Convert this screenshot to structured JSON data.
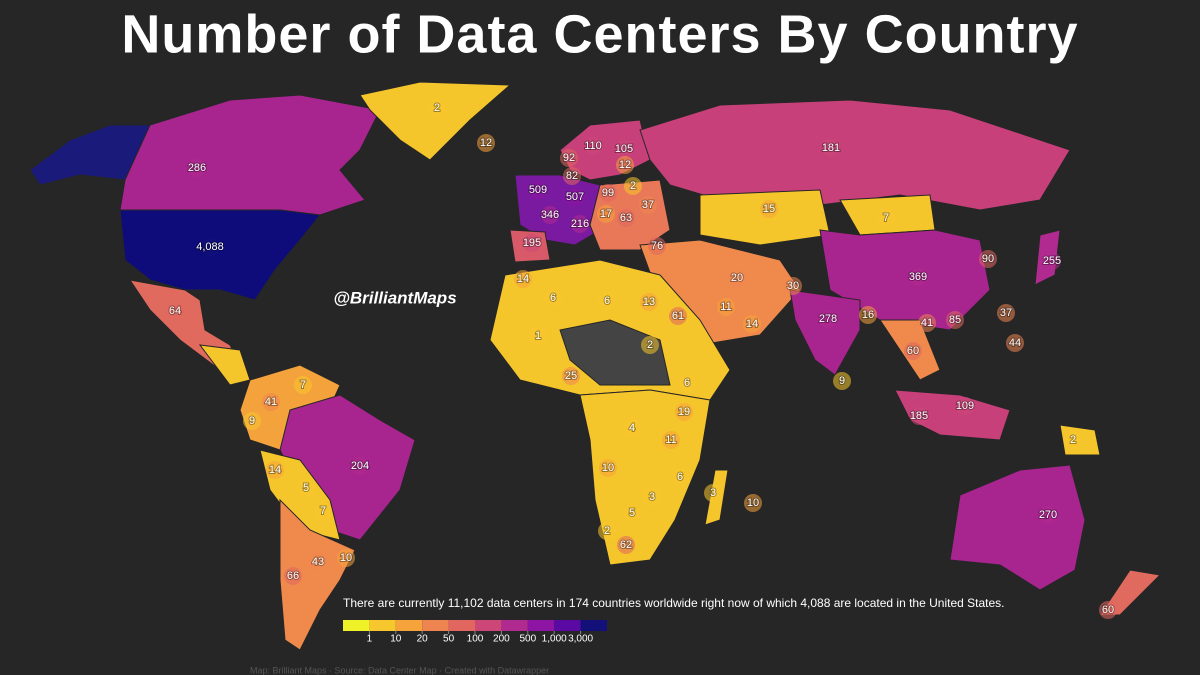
{
  "title": "Number of Data Centers By Country",
  "watermark": "@BrilliantMaps",
  "note": "There are currently 11,102 data centers in 174 countries worldwide right now of which 4,088 are located in the United States.",
  "credit": "Map: Brilliant Maps · Source: Data Center Map · Created with Datawrapper",
  "legend": {
    "colors": [
      "#eef227",
      "#f7c72e",
      "#f6a33b",
      "#ee8550",
      "#e0665f",
      "#cc4778",
      "#b12a90",
      "#8e14a3",
      "#5a0aa3",
      "#14107a"
    ],
    "ticks": [
      1,
      10,
      20,
      50,
      100,
      200,
      500,
      {
        "value": 1000,
        "label": "1,000"
      },
      {
        "value": 3000,
        "label": "3,000"
      }
    ]
  },
  "labels": [
    2,
    12,
    286,
    {
      "value": 4088,
      "label": "4,088"
    },
    64,
    181,
    509,
    346,
    507,
    110,
    105,
    92,
    82,
    12,
    99,
    2,
    37,
    216,
    195,
    17,
    63,
    15,
    7,
    369,
    255,
    90,
    278,
    76,
    20,
    30,
    61,
    13,
    6,
    6,
    25,
    19,
    185,
    109,
    60,
    41,
    44,
    37,
    85,
    43,
    66,
    14,
    41,
    5,
    7,
    10,
    7,
    9,
    204,
    270,
    60,
    2,
    3,
    10,
    11,
    4,
    10,
    2,
    5,
    3,
    6,
    6,
    2,
    1,
    14,
    14,
    11,
    16,
    9,
    62
  ]
}
